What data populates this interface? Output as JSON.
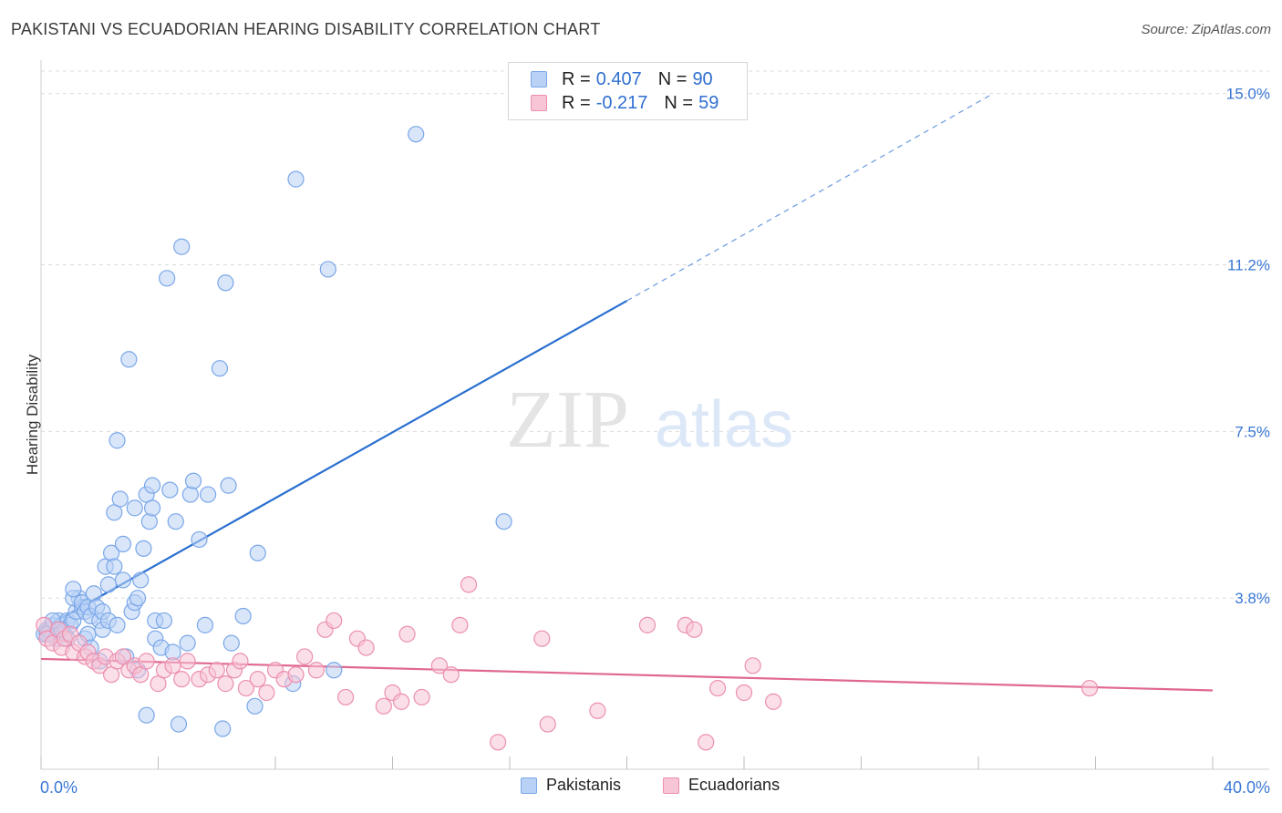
{
  "title": "PAKISTANI VS ECUADORIAN HEARING DISABILITY CORRELATION CHART",
  "source": "Source: ZipAtlas.com",
  "watermark": {
    "zip": "ZIP",
    "atlas": "atlas"
  },
  "legend_top": {
    "rows": [
      {
        "r_label": "R =",
        "r_value": "0.407",
        "n_label": "N =",
        "n_value": "90",
        "color": "#7aa7e8",
        "fill": "#b9d1f5"
      },
      {
        "r_label": "R =",
        "r_value": "-0.217",
        "n_label": "N =",
        "n_value": "59",
        "color": "#eb8fb0",
        "fill": "#f7c5d6"
      }
    ]
  },
  "legend_bottom": [
    {
      "label": "Pakistanis",
      "color": "#7aa7e8",
      "fill": "#b9d1f5"
    },
    {
      "label": "Ecuadorians",
      "color": "#eb8fb0",
      "fill": "#f7c5d6"
    }
  ],
  "chart_data": {
    "type": "scatter",
    "xlabel": "",
    "ylabel": "Hearing Disability",
    "xlim": [
      0,
      40
    ],
    "ylim": [
      0,
      15.5
    ],
    "x_tick_labels": [
      "0.0%",
      "40.0%"
    ],
    "y_ticks": [
      {
        "value": 3.8,
        "label": "3.8%"
      },
      {
        "value": 7.5,
        "label": "7.5%"
      },
      {
        "value": 11.2,
        "label": "11.2%"
      },
      {
        "value": 15.0,
        "label": "15.0%"
      }
    ],
    "grid": "horizontal-dashed",
    "legend_placement": "top-center",
    "series": [
      {
        "name": "Pakistanis",
        "color": "#7aa7e8",
        "fill": "#b9d1f5",
        "trend": {
          "x0": 0,
          "y0": 3.1,
          "x1": 20,
          "y1": 10.4,
          "dashed_to_x": 32.5,
          "dashed_to_y": 15.0,
          "line_color": "#2a6fd0"
        },
        "points": [
          [
            0.1,
            3.0
          ],
          [
            0.2,
            3.1
          ],
          [
            0.3,
            3.0
          ],
          [
            0.4,
            3.2
          ],
          [
            0.5,
            3.1
          ],
          [
            0.6,
            3.3
          ],
          [
            0.7,
            3.2
          ],
          [
            0.8,
            3.0
          ],
          [
            0.9,
            3.3
          ],
          [
            1.0,
            3.2
          ],
          [
            0.3,
            3.1
          ],
          [
            0.5,
            2.9
          ],
          [
            0.7,
            3.1
          ],
          [
            0.9,
            2.9
          ],
          [
            1.1,
            3.3
          ],
          [
            1.2,
            3.5
          ],
          [
            1.3,
            3.8
          ],
          [
            1.4,
            3.6
          ],
          [
            1.5,
            2.9
          ],
          [
            1.6,
            3.0
          ],
          [
            1.1,
            3.8
          ],
          [
            1.1,
            4.0
          ],
          [
            1.4,
            3.7
          ],
          [
            1.5,
            3.5
          ],
          [
            1.6,
            3.6
          ],
          [
            1.7,
            3.4
          ],
          [
            1.7,
            2.7
          ],
          [
            1.8,
            3.9
          ],
          [
            1.9,
            3.6
          ],
          [
            2.0,
            2.4
          ],
          [
            2.0,
            3.3
          ],
          [
            2.1,
            3.1
          ],
          [
            2.1,
            3.5
          ],
          [
            2.2,
            4.5
          ],
          [
            2.3,
            4.1
          ],
          [
            2.3,
            3.3
          ],
          [
            2.4,
            4.8
          ],
          [
            2.5,
            4.5
          ],
          [
            2.5,
            5.7
          ],
          [
            2.6,
            3.2
          ],
          [
            2.6,
            7.3
          ],
          [
            2.7,
            6.0
          ],
          [
            2.8,
            4.2
          ],
          [
            2.8,
            5.0
          ],
          [
            2.9,
            2.5
          ],
          [
            3.0,
            9.1
          ],
          [
            3.1,
            3.5
          ],
          [
            3.2,
            3.7
          ],
          [
            3.2,
            5.8
          ],
          [
            3.3,
            3.8
          ],
          [
            3.3,
            2.2
          ],
          [
            3.4,
            4.2
          ],
          [
            3.5,
            4.9
          ],
          [
            3.6,
            1.2
          ],
          [
            3.6,
            6.1
          ],
          [
            3.7,
            5.5
          ],
          [
            3.8,
            6.3
          ],
          [
            3.8,
            5.8
          ],
          [
            3.9,
            2.9
          ],
          [
            3.9,
            3.3
          ],
          [
            4.1,
            2.7
          ],
          [
            4.2,
            3.3
          ],
          [
            4.3,
            10.9
          ],
          [
            4.4,
            6.2
          ],
          [
            4.5,
            2.6
          ],
          [
            4.6,
            5.5
          ],
          [
            4.7,
            1.0
          ],
          [
            4.8,
            11.6
          ],
          [
            5.0,
            2.8
          ],
          [
            5.1,
            6.1
          ],
          [
            5.2,
            6.4
          ],
          [
            5.4,
            5.1
          ],
          [
            5.6,
            3.2
          ],
          [
            5.7,
            6.1
          ],
          [
            6.1,
            8.9
          ],
          [
            6.2,
            0.9
          ],
          [
            6.3,
            10.8
          ],
          [
            6.4,
            6.3
          ],
          [
            6.5,
            2.8
          ],
          [
            6.9,
            3.4
          ],
          [
            7.3,
            1.4
          ],
          [
            7.4,
            4.8
          ],
          [
            8.7,
            13.1
          ],
          [
            8.6,
            1.9
          ],
          [
            9.8,
            11.1
          ],
          [
            10.0,
            2.2
          ],
          [
            12.8,
            14.1
          ],
          [
            15.8,
            5.5
          ],
          [
            0.2,
            3.0
          ],
          [
            0.4,
            3.3
          ]
        ]
      },
      {
        "name": "Ecuadorians",
        "color": "#eb8fb0",
        "fill": "#f7c5d6",
        "trend": {
          "x0": 0,
          "y0": 2.45,
          "x1": 40,
          "y1": 1.75,
          "line_color": "#e0688f"
        },
        "points": [
          [
            0.1,
            3.2
          ],
          [
            0.2,
            2.9
          ],
          [
            0.4,
            2.8
          ],
          [
            0.6,
            3.1
          ],
          [
            0.7,
            2.7
          ],
          [
            0.8,
            2.9
          ],
          [
            1.0,
            3.0
          ],
          [
            1.1,
            2.6
          ],
          [
            1.3,
            2.8
          ],
          [
            1.5,
            2.5
          ],
          [
            1.6,
            2.6
          ],
          [
            1.8,
            2.4
          ],
          [
            2.0,
            2.3
          ],
          [
            2.2,
            2.5
          ],
          [
            2.4,
            2.1
          ],
          [
            2.6,
            2.4
          ],
          [
            2.8,
            2.5
          ],
          [
            3.0,
            2.2
          ],
          [
            3.2,
            2.3
          ],
          [
            3.4,
            2.1
          ],
          [
            3.6,
            2.4
          ],
          [
            4.0,
            1.9
          ],
          [
            4.2,
            2.2
          ],
          [
            4.5,
            2.3
          ],
          [
            4.8,
            2.0
          ],
          [
            5.0,
            2.4
          ],
          [
            5.4,
            2.0
          ],
          [
            5.7,
            2.1
          ],
          [
            6.0,
            2.2
          ],
          [
            6.3,
            1.9
          ],
          [
            6.6,
            2.2
          ],
          [
            6.8,
            2.4
          ],
          [
            7.0,
            1.8
          ],
          [
            7.4,
            2.0
          ],
          [
            7.7,
            1.7
          ],
          [
            8.0,
            2.2
          ],
          [
            8.3,
            2.0
          ],
          [
            8.7,
            2.1
          ],
          [
            9.0,
            2.5
          ],
          [
            9.4,
            2.2
          ],
          [
            9.7,
            3.1
          ],
          [
            10.0,
            3.3
          ],
          [
            10.4,
            1.6
          ],
          [
            10.8,
            2.9
          ],
          [
            11.1,
            2.7
          ],
          [
            11.7,
            1.4
          ],
          [
            12.0,
            1.7
          ],
          [
            12.3,
            1.5
          ],
          [
            12.5,
            3.0
          ],
          [
            13.0,
            1.6
          ],
          [
            13.6,
            2.3
          ],
          [
            14.0,
            2.1
          ],
          [
            14.3,
            3.2
          ],
          [
            14.6,
            4.1
          ],
          [
            15.6,
            0.6
          ],
          [
            17.1,
            2.9
          ],
          [
            17.3,
            1.0
          ],
          [
            19.0,
            1.3
          ],
          [
            20.7,
            3.2
          ]
        ],
        "extra_points": [
          [
            22.0,
            3.2
          ],
          [
            22.3,
            3.1
          ],
          [
            22.7,
            0.6
          ],
          [
            23.1,
            1.8
          ],
          [
            24.0,
            1.7
          ],
          [
            24.3,
            2.3
          ],
          [
            25.0,
            1.5
          ],
          [
            35.8,
            1.8
          ]
        ]
      }
    ]
  }
}
